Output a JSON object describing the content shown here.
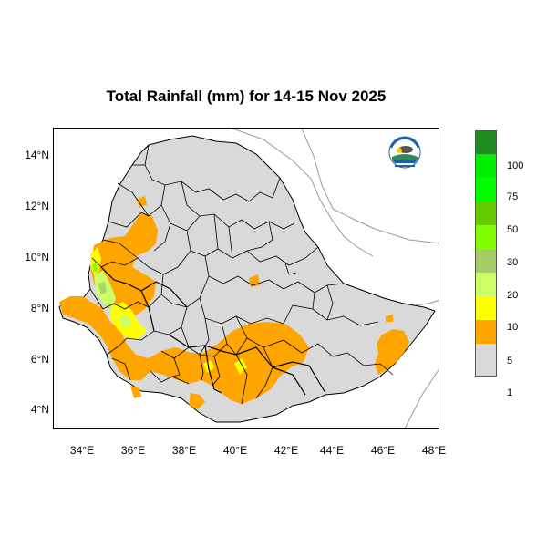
{
  "title": "Total Rainfall (mm) for 14-15 Nov 2025",
  "map": {
    "region": "Ethiopia",
    "lon_range": [
      33,
      48.2
    ],
    "lat_range": [
      3.2,
      15
    ],
    "x_ticks": [
      "34°E",
      "36°E",
      "38°E",
      "40°E",
      "42°E",
      "44°E",
      "46°E",
      "48°E"
    ],
    "y_ticks": [
      "14°N",
      "12°N",
      "10°N",
      "8°N",
      "6°N",
      "4°N"
    ],
    "colors": {
      "land": "#d9d9d9",
      "border": "#000000",
      "coast": "#999999",
      "class_1_5": "#ffa500",
      "class_5_10": "#ffff00",
      "class_10_20": "#ccff66",
      "class_20_30": "#a6d96a",
      "class_30_50": "#7fff00"
    }
  },
  "legend": {
    "swatches": [
      "#228b22",
      "#00ee00",
      "#00ff00",
      "#66cc00",
      "#7fff00",
      "#a6cc66",
      "#ccff66",
      "#ffff00",
      "#ffa500",
      "#d9d9d9"
    ],
    "labels": [
      "100",
      "75",
      "50",
      "30",
      "20",
      "10",
      "5",
      "1"
    ]
  },
  "logo": {
    "icon": "ethiopian-meteorology-institute-logo"
  }
}
